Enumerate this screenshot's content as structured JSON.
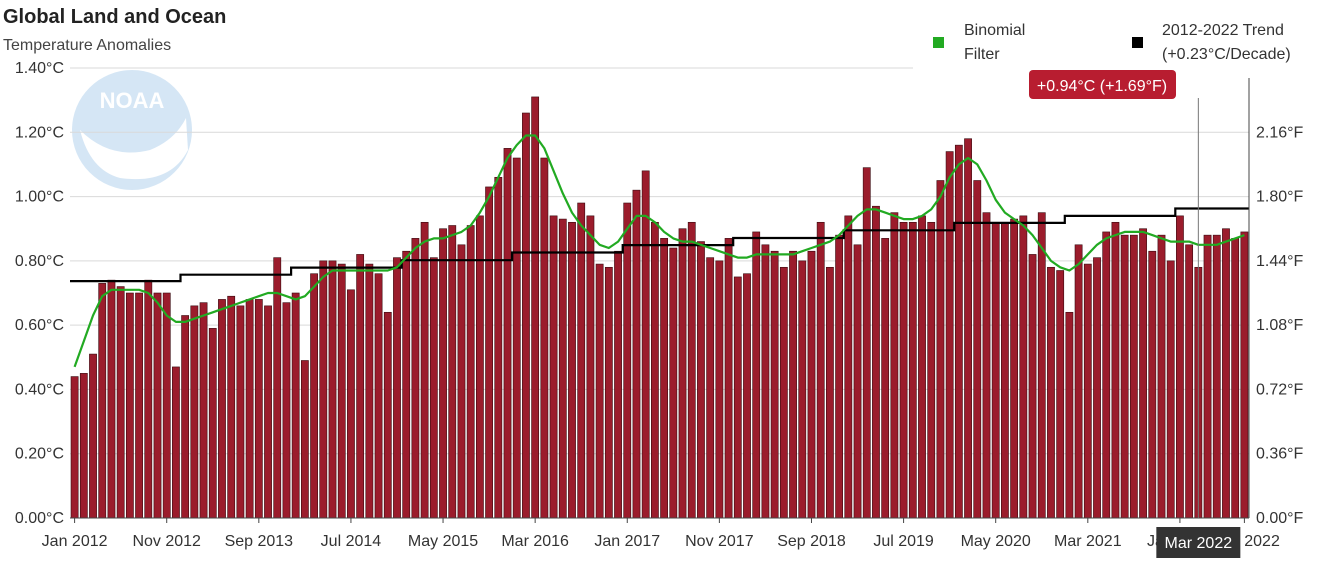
{
  "header": {
    "title": "Global Land and Ocean",
    "subtitle": "Temperature Anomalies"
  },
  "legend": {
    "filter_label_1": "Binomial",
    "filter_label_2": "Filter",
    "trend_label_1": "2012-2022 Trend",
    "trend_label_2": "(+0.23°C/Decade)"
  },
  "tooltip": {
    "value_label": "+0.94°C (+1.69°F)",
    "date_label": "Mar 2022"
  },
  "colors": {
    "bar": "#9b1c2c",
    "bar_edge": "#3a0a10",
    "filter": "#22aa22",
    "trend": "#000000",
    "tooltip": "#b81d30",
    "date_badge": "#333333",
    "grid": "#d9d9d9"
  },
  "watermark": {
    "text": "NOAA"
  },
  "chart_data": {
    "type": "bar",
    "title": "Global Land and Ocean",
    "subtitle": "Temperature Anomalies",
    "x_tick_labels": [
      "Jan 2012",
      "Nov 2012",
      "Sep 2013",
      "Jul 2014",
      "May 2015",
      "Mar 2016",
      "Jan 2017",
      "Nov 2017",
      "Sep 2018",
      "Jul 2019",
      "May 2020",
      "Mar 2021",
      "Jan 2022",
      "Oct 2022"
    ],
    "y_left_ticks": [
      "0.00°C",
      "0.20°C",
      "0.40°C",
      "0.60°C",
      "0.80°C",
      "1.00°C",
      "1.20°C",
      "1.40°C"
    ],
    "y_right_ticks": [
      "0.00°F",
      "0.36°F",
      "0.72°F",
      "1.08°F",
      "1.44°F",
      "1.80°F",
      "2.16°F"
    ],
    "ylim": [
      0,
      1.4
    ],
    "start": "Jan 2012",
    "end": "Oct 2022",
    "values": [
      0.44,
      0.45,
      0.51,
      0.73,
      0.74,
      0.72,
      0.7,
      0.7,
      0.74,
      0.7,
      0.7,
      0.47,
      0.63,
      0.66,
      0.67,
      0.59,
      0.68,
      0.69,
      0.66,
      0.68,
      0.68,
      0.66,
      0.81,
      0.67,
      0.7,
      0.49,
      0.76,
      0.8,
      0.8,
      0.79,
      0.71,
      0.82,
      0.79,
      0.76,
      0.64,
      0.81,
      0.83,
      0.87,
      0.92,
      0.81,
      0.9,
      0.91,
      0.85,
      0.91,
      0.94,
      1.03,
      1.06,
      1.15,
      1.12,
      1.26,
      1.31,
      1.12,
      0.94,
      0.93,
      0.92,
      0.98,
      0.94,
      0.79,
      0.78,
      0.83,
      0.98,
      1.02,
      1.08,
      0.92,
      0.87,
      0.84,
      0.9,
      0.92,
      0.86,
      0.81,
      0.8,
      0.87,
      0.75,
      0.76,
      0.89,
      0.85,
      0.83,
      0.78,
      0.83,
      0.8,
      0.83,
      0.92,
      0.78,
      0.88,
      0.94,
      0.85,
      1.09,
      0.97,
      0.87,
      0.95,
      0.92,
      0.92,
      0.94,
      0.92,
      1.05,
      1.14,
      1.16,
      1.18,
      1.05,
      0.95,
      0.92,
      0.92,
      0.93,
      0.94,
      0.82,
      0.95,
      0.78,
      0.77,
      0.64,
      0.85,
      0.79,
      0.81,
      0.89,
      0.92,
      0.88,
      0.88,
      0.9,
      0.83,
      0.88,
      0.8,
      0.94,
      0.85,
      0.78,
      0.88,
      0.88,
      0.9,
      0.87,
      0.89
    ],
    "series": [
      {
        "name": "Binomial Filter",
        "type": "line",
        "values": [
          0.47,
          0.55,
          0.63,
          0.69,
          0.71,
          0.71,
          0.71,
          0.71,
          0.7,
          0.67,
          0.63,
          0.61,
          0.61,
          0.62,
          0.63,
          0.64,
          0.65,
          0.66,
          0.67,
          0.68,
          0.69,
          0.7,
          0.7,
          0.69,
          0.68,
          0.69,
          0.72,
          0.75,
          0.77,
          0.77,
          0.77,
          0.77,
          0.77,
          0.77,
          0.77,
          0.78,
          0.81,
          0.84,
          0.86,
          0.87,
          0.87,
          0.88,
          0.89,
          0.91,
          0.95,
          1.0,
          1.06,
          1.12,
          1.16,
          1.19,
          1.19,
          1.15,
          1.08,
          1.01,
          0.95,
          0.91,
          0.88,
          0.85,
          0.84,
          0.86,
          0.9,
          0.94,
          0.94,
          0.92,
          0.89,
          0.87,
          0.86,
          0.86,
          0.85,
          0.84,
          0.83,
          0.82,
          0.81,
          0.81,
          0.82,
          0.82,
          0.82,
          0.82,
          0.82,
          0.83,
          0.84,
          0.85,
          0.86,
          0.88,
          0.91,
          0.94,
          0.96,
          0.96,
          0.95,
          0.94,
          0.93,
          0.93,
          0.94,
          0.96,
          1.0,
          1.06,
          1.1,
          1.12,
          1.1,
          1.05,
          0.99,
          0.95,
          0.93,
          0.91,
          0.88,
          0.84,
          0.8,
          0.78,
          0.77,
          0.79,
          0.82,
          0.85,
          0.87,
          0.88,
          0.89,
          0.89,
          0.89,
          0.88,
          0.87,
          0.86,
          0.86,
          0.86,
          0.85,
          0.85,
          0.85,
          0.86,
          0.87,
          0.88
        ]
      },
      {
        "name": "2012-2022 Trend (+0.23°C/Decade)",
        "type": "step",
        "values_by_year": [
          {
            "year": 2012,
            "value": 0.737
          },
          {
            "year": 2013,
            "value": 0.757
          },
          {
            "year": 2014,
            "value": 0.779
          },
          {
            "year": 2015,
            "value": 0.802
          },
          {
            "year": 2016,
            "value": 0.826
          },
          {
            "year": 2017,
            "value": 0.849
          },
          {
            "year": 2018,
            "value": 0.871
          },
          {
            "year": 2019,
            "value": 0.895
          },
          {
            "year": 2020,
            "value": 0.918
          },
          {
            "year": 2021,
            "value": 0.94
          },
          {
            "year": 2022,
            "value": 0.963
          }
        ]
      }
    ],
    "highlight": {
      "date": "Mar 2022",
      "value_c": 0.94,
      "value_f": 1.69
    },
    "grid": true,
    "legend_position": "top-right"
  }
}
